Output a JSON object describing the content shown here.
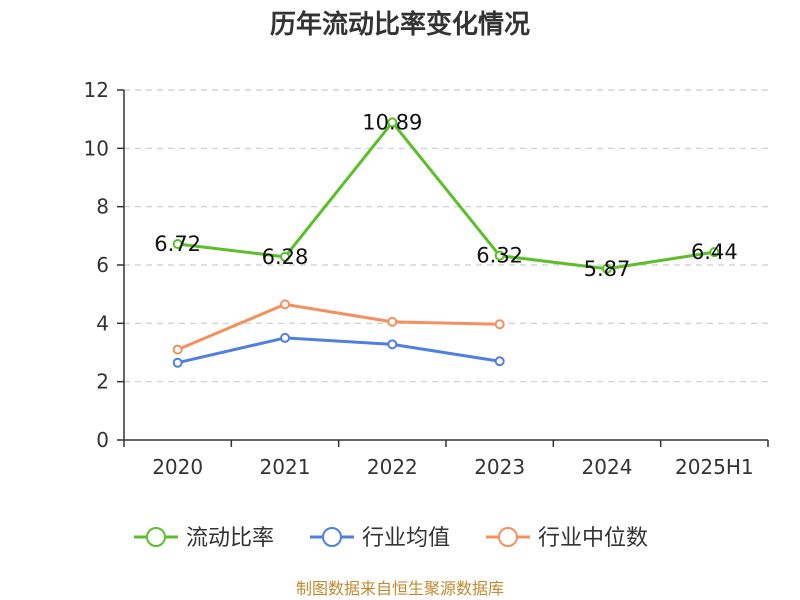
{
  "chart_data": {
    "type": "line",
    "title": "历年流动比率变化情况",
    "categories": [
      "2020",
      "2021",
      "2022",
      "2023",
      "2024",
      "2025H1"
    ],
    "ylim": [
      0,
      12
    ],
    "yticks": [
      "0",
      "2",
      "4",
      "6",
      "8",
      "10",
      "12"
    ],
    "grid": true,
    "legend_position": "bottom",
    "series": [
      {
        "name": "流动比率",
        "color": "#5cbf2a",
        "values": [
          6.72,
          6.28,
          10.89,
          6.32,
          5.87,
          6.44
        ],
        "labels": [
          "6.72",
          "6.28",
          "10.89",
          "6.32",
          "5.87",
          "6.44"
        ]
      },
      {
        "name": "行业均值",
        "color": "#4f7fe0",
        "values": [
          2.65,
          3.5,
          3.28,
          2.7,
          null,
          null
        ]
      },
      {
        "name": "行业中位数",
        "color": "#f5905e",
        "values": [
          3.1,
          4.65,
          4.05,
          3.97,
          null,
          null
        ]
      }
    ],
    "source": "制图数据来自恒生聚源数据库"
  }
}
